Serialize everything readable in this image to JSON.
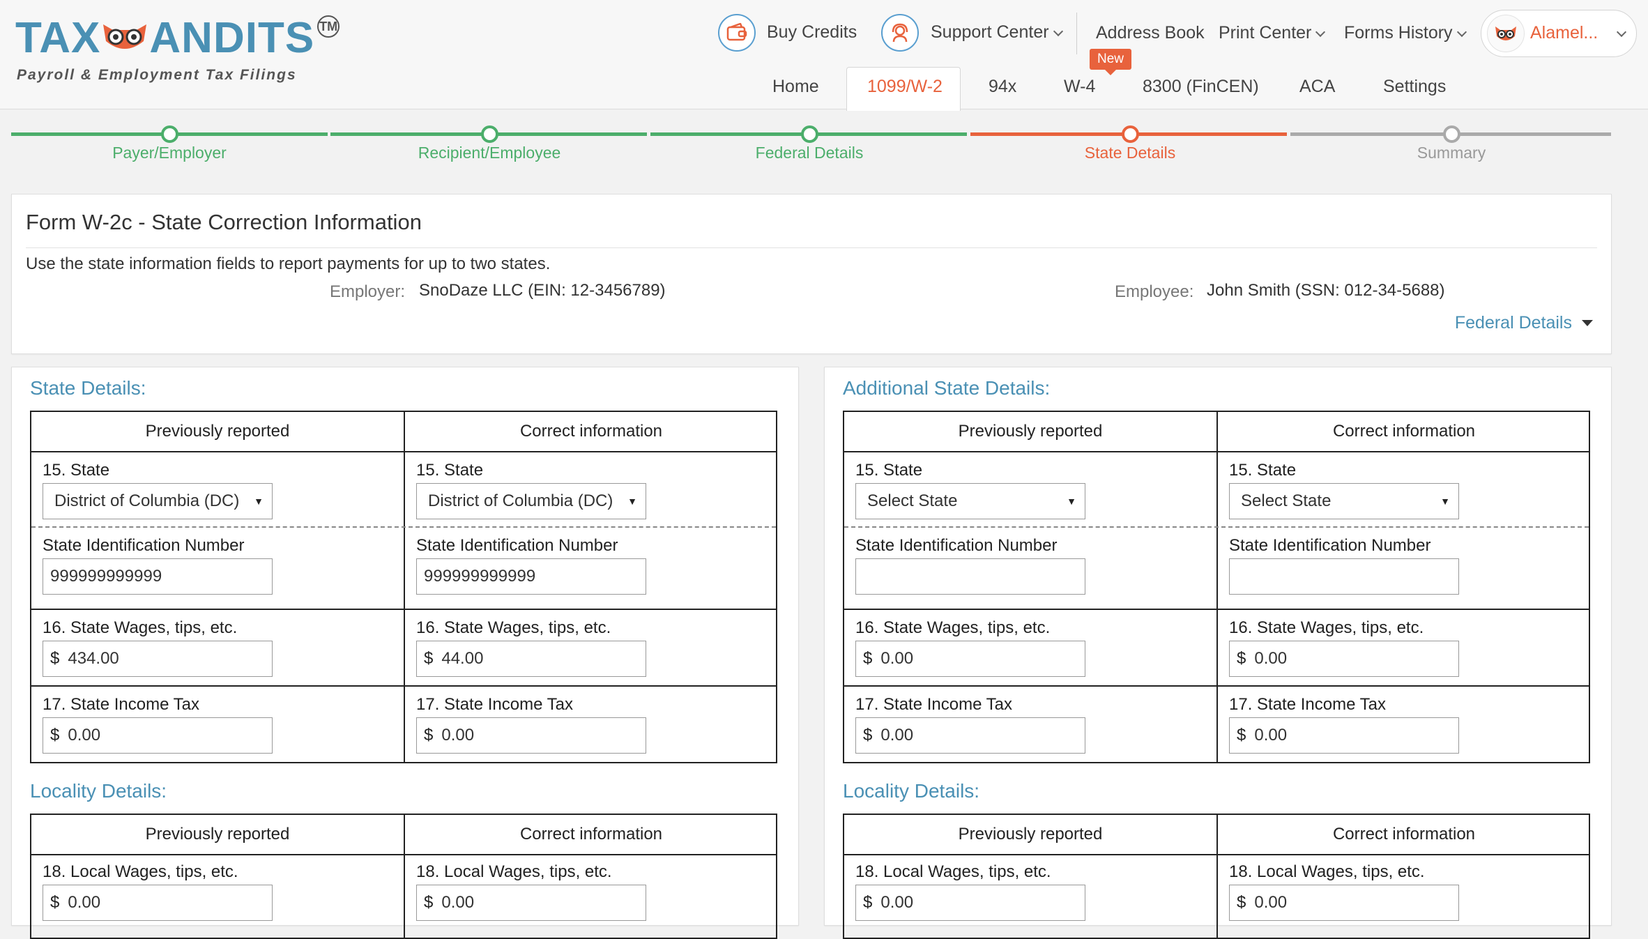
{
  "header": {
    "logo_text_left": "TAX",
    "logo_text_right": "ANDITS",
    "logo_tm": "TM",
    "logo_tagline": "Payroll & Employment Tax Filings",
    "buy_credits": "Buy Credits",
    "support_center": "Support Center",
    "address_book": "Address Book",
    "print_center": "Print Center",
    "forms_history": "Forms History",
    "user_name": "Alamel...",
    "new_badge": "New",
    "tabs": [
      {
        "label": "Home"
      },
      {
        "label": "1099/W-2"
      },
      {
        "label": "94x"
      },
      {
        "label": "W-4"
      },
      {
        "label": "8300 (FinCEN)"
      },
      {
        "label": "ACA"
      },
      {
        "label": "Settings"
      }
    ]
  },
  "steps": [
    {
      "label": "Payer/Employer",
      "state": "done"
    },
    {
      "label": "Recipient/Employee",
      "state": "done"
    },
    {
      "label": "Federal Details",
      "state": "done"
    },
    {
      "label": "State Details",
      "state": "current"
    },
    {
      "label": "Summary",
      "state": "pending"
    }
  ],
  "info": {
    "title": "Form W-2c - State Correction Information",
    "intro": "Use the state information fields to report payments for up to two states.",
    "employer_label": "Employer:",
    "employer_value": "SnoDaze LLC (EIN: 12-3456789)",
    "employee_label": "Employee:",
    "employee_value": "John Smith (SSN: 012-34-5688)",
    "federal_link": "Federal Details"
  },
  "panels": [
    {
      "title": "State Details:",
      "prev_header": "Previously reported",
      "correct_header": "Correct information",
      "state_label": "15. State",
      "prev_state": "District of Columbia (DC)",
      "correct_state": "District of Columbia (DC)",
      "sin_label": "State Identification Number",
      "prev_sin": "999999999999",
      "correct_sin": "999999999999",
      "wages_label": "16. State Wages, tips, etc.",
      "prev_wages": "434.00",
      "correct_wages": "44.00",
      "tax_label": "17. State Income Tax",
      "prev_tax": "0.00",
      "correct_tax": "0.00",
      "locality_title": "Locality Details:",
      "local_wages_label": "18. Local Wages, tips, etc.",
      "prev_local_wages": "0.00",
      "correct_local_wages": "0.00"
    },
    {
      "title": "Additional State Details:",
      "prev_header": "Previously reported",
      "correct_header": "Correct information",
      "state_label": "15. State",
      "prev_state": "Select State",
      "correct_state": "Select State",
      "sin_label": "State Identification Number",
      "prev_sin": "",
      "correct_sin": "",
      "wages_label": "16. State Wages, tips, etc.",
      "prev_wages": "0.00",
      "correct_wages": "0.00",
      "tax_label": "17. State Income Tax",
      "prev_tax": "0.00",
      "correct_tax": "0.00",
      "locality_title": "Locality Details:",
      "local_wages_label": "18. Local Wages, tips, etc.",
      "prev_local_wages": "0.00",
      "correct_local_wages": "0.00"
    }
  ],
  "currency_symbol": "$",
  "colors": {
    "brand_blue": "#4a90b4",
    "accent_orange": "#e8623c",
    "step_done": "#4cae6b",
    "step_pending": "#aaaaaa"
  }
}
